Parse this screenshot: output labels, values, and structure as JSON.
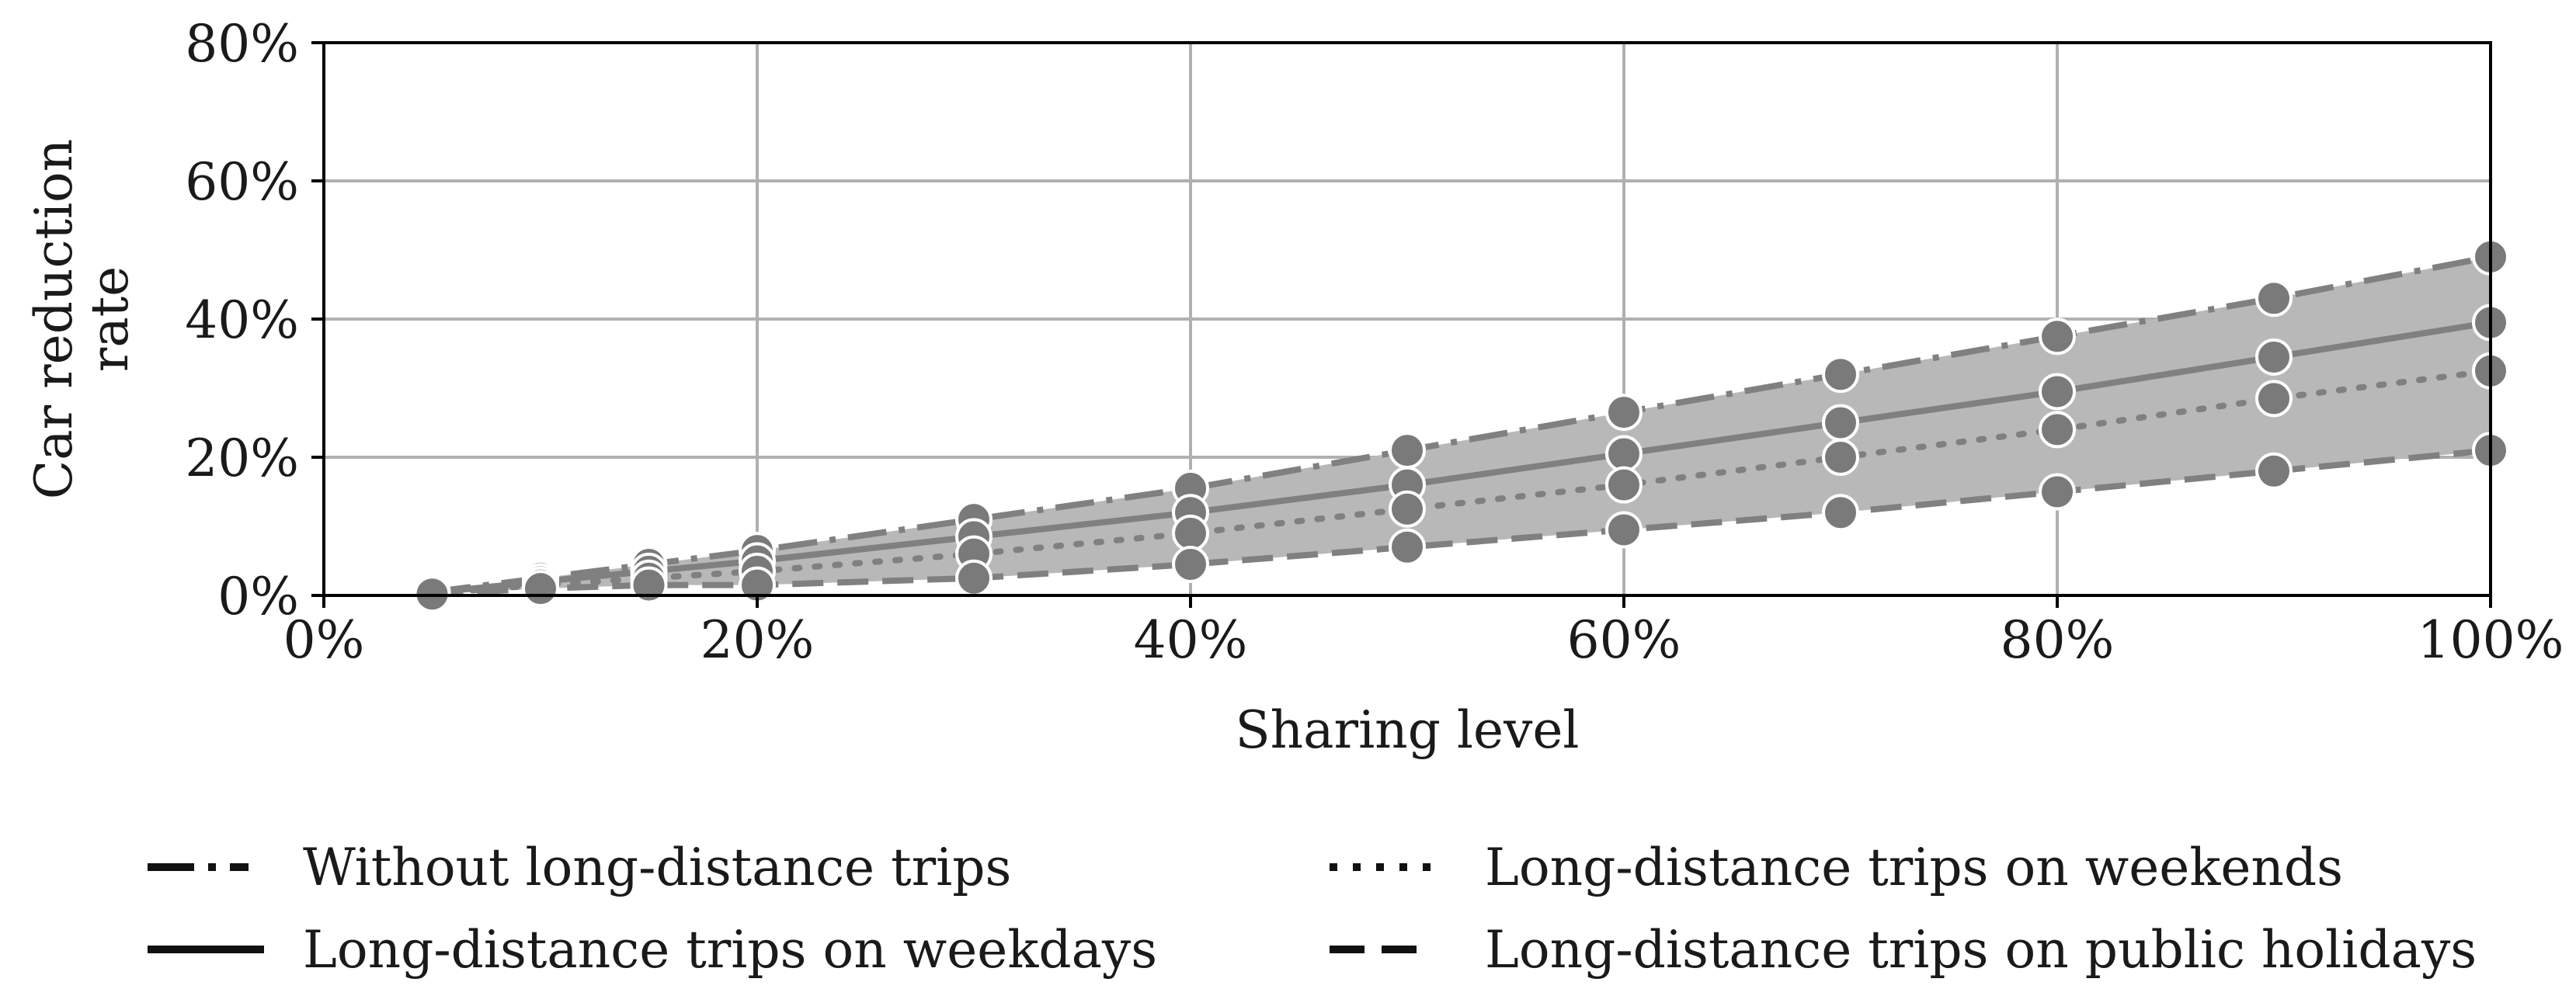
{
  "chart_data": {
    "type": "line",
    "xlabel": "Sharing level",
    "ylabel": "Car reduction rate",
    "ylabel_lines": [
      "Car reduction",
      "rate"
    ],
    "xlim": [
      0,
      100
    ],
    "ylim": [
      0,
      80
    ],
    "x_ticks": [
      0,
      20,
      40,
      60,
      80,
      100
    ],
    "y_ticks": [
      0,
      20,
      40,
      60,
      80
    ],
    "x_tick_labels": [
      "0%",
      "20%",
      "40%",
      "60%",
      "80%",
      "100%"
    ],
    "y_tick_labels": [
      "0%",
      "20%",
      "40%",
      "60%",
      "80%"
    ],
    "grid": true,
    "legend_position": "bottom",
    "band": {
      "fill": "#b8b8b8",
      "between": [
        "Without long-distance trips",
        "Long-distance trips on public holidays"
      ]
    },
    "x": [
      5,
      10,
      15,
      20,
      30,
      40,
      50,
      60,
      70,
      80,
      90,
      100
    ],
    "series": [
      {
        "name": "Without long-distance trips",
        "dash": "dashdot",
        "values": [
          0.5,
          2.5,
          4.5,
          6.5,
          11,
          15.5,
          21,
          26.5,
          32,
          37.5,
          43,
          49
        ]
      },
      {
        "name": "Long-distance trips on weekdays",
        "dash": "solid",
        "values": [
          0.4,
          2.0,
          3.5,
          5.0,
          8.5,
          12,
          16,
          20.5,
          25,
          29.5,
          34.5,
          39.5
        ]
      },
      {
        "name": "Long-distance trips on weekends",
        "dash": "dotted",
        "values": [
          0.3,
          1.5,
          2.5,
          3.5,
          6,
          9,
          12.5,
          16,
          20,
          24,
          28.5,
          32.5
        ]
      },
      {
        "name": "Long-distance trips on public holidays",
        "dash": "dashed",
        "values": [
          0.2,
          1.0,
          1.5,
          1.5,
          2.5,
          4.5,
          7,
          9.5,
          12,
          15,
          18,
          21
        ]
      }
    ],
    "line_color": "#808080",
    "marker_color": "#7a7a7a"
  }
}
